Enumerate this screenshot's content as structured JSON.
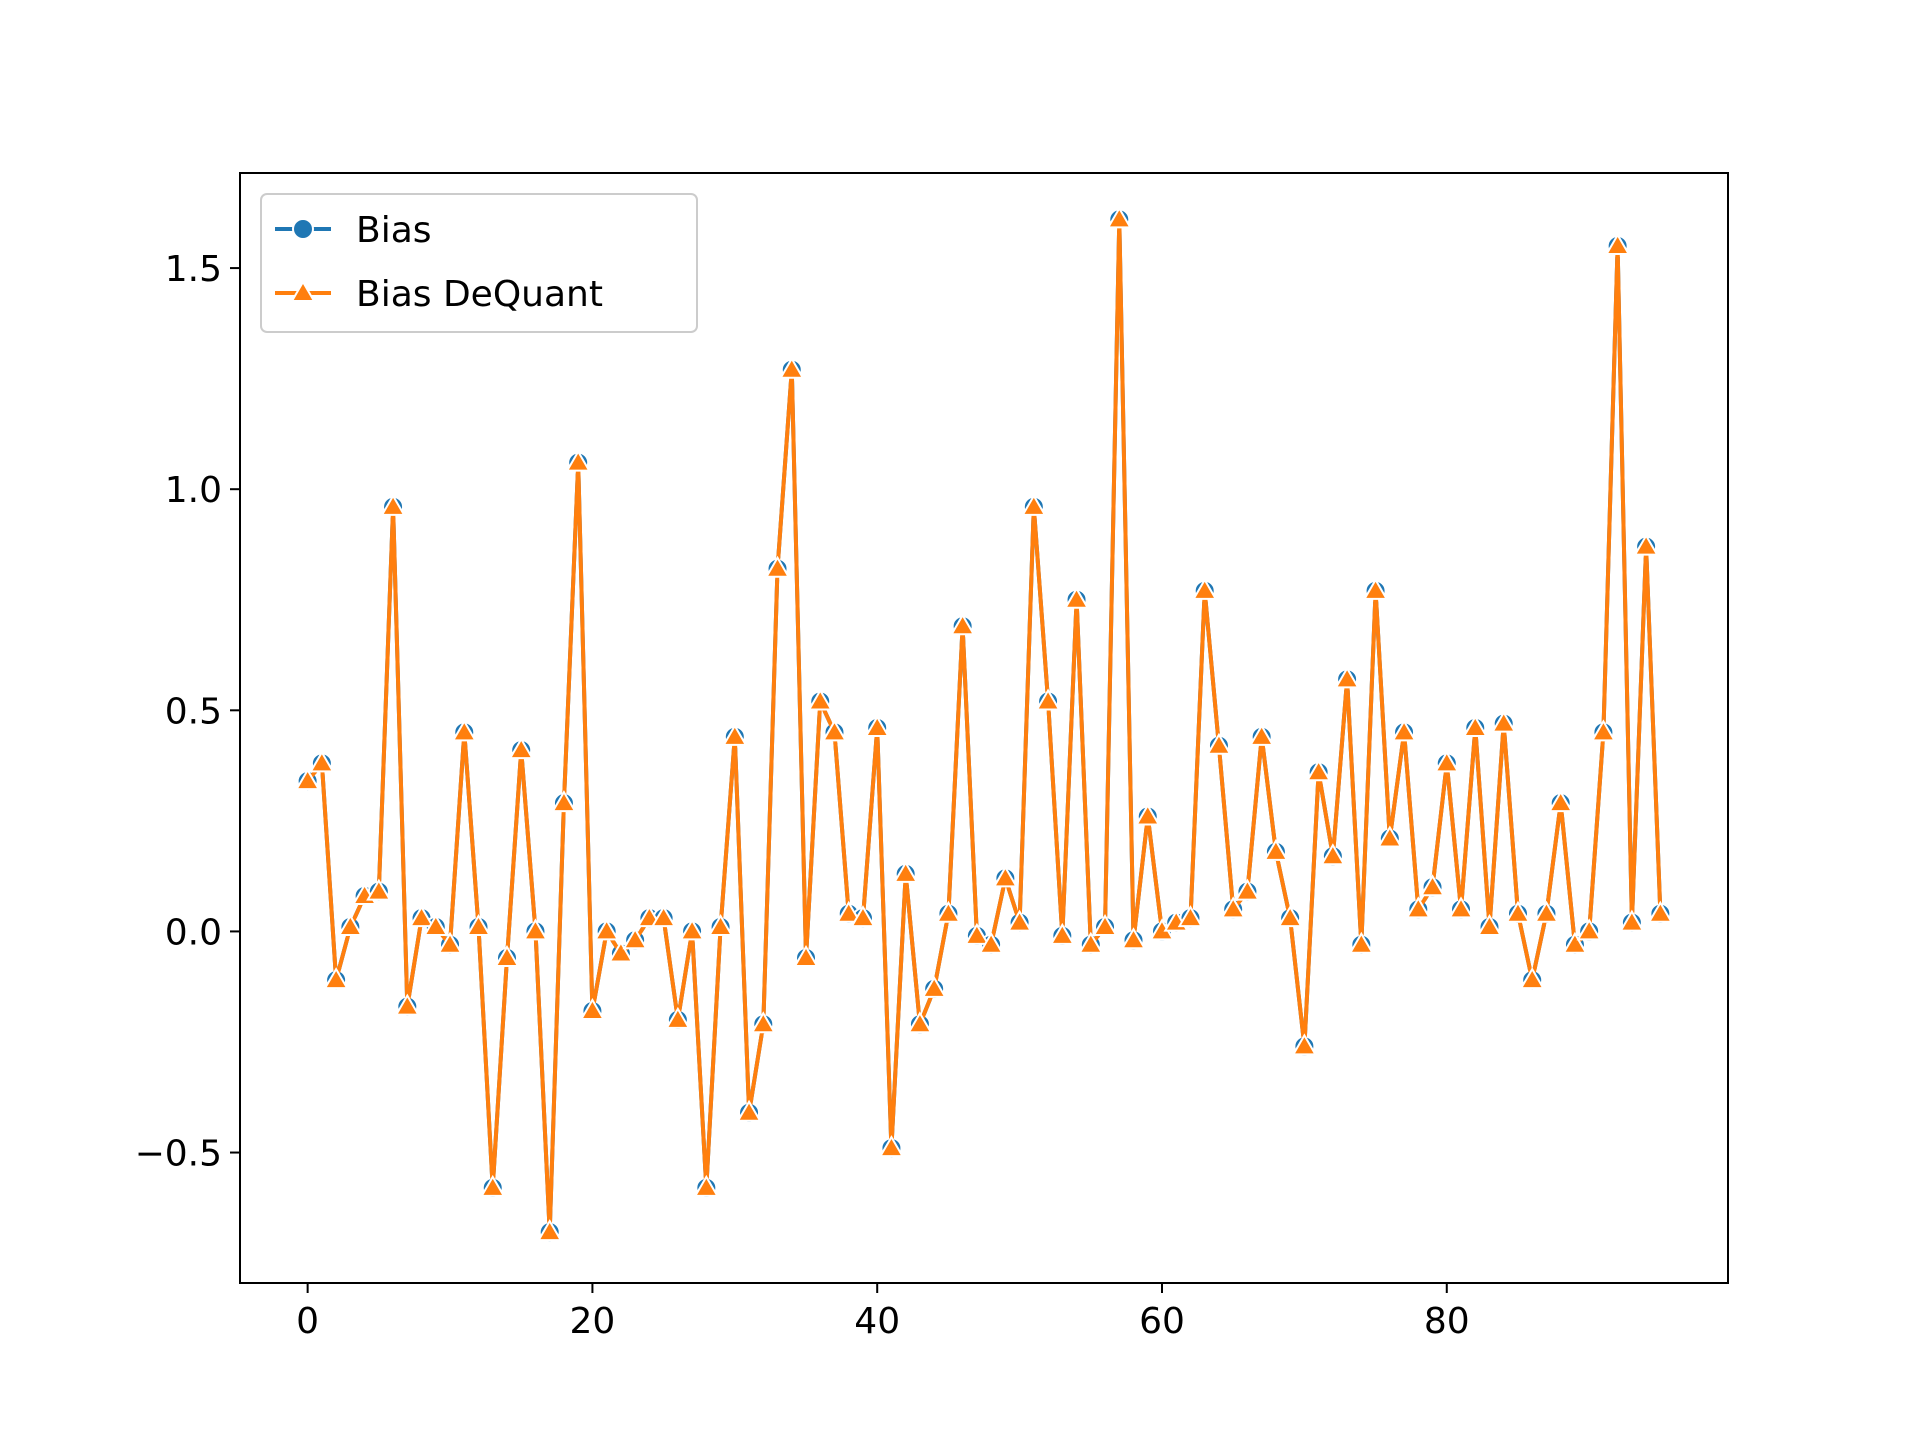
{
  "chart_data": {
    "type": "line",
    "title": "",
    "xlabel": "",
    "ylabel": "",
    "xlim": [
      -4.75,
      99.75
    ],
    "ylim": [
      -0.795,
      1.715
    ],
    "x_ticks": [
      0,
      20,
      40,
      60,
      80
    ],
    "y_ticks": [
      -0.5,
      0.0,
      0.5,
      1.0,
      1.5
    ],
    "x_tick_labels": [
      "0",
      "20",
      "40",
      "60",
      "80"
    ],
    "y_tick_labels": [
      "−0.5",
      "0.0",
      "0.5",
      "1.0",
      "1.5"
    ],
    "grid": false,
    "legend_position": "upper left",
    "x": [
      0,
      1,
      2,
      3,
      4,
      5,
      6,
      7,
      8,
      9,
      10,
      11,
      12,
      13,
      14,
      15,
      16,
      17,
      18,
      19,
      20,
      21,
      22,
      23,
      24,
      25,
      26,
      27,
      28,
      29,
      30,
      31,
      32,
      33,
      34,
      35,
      36,
      37,
      38,
      39,
      40,
      41,
      42,
      43,
      44,
      45,
      46,
      47,
      48,
      49,
      50,
      51,
      52,
      53,
      54,
      55,
      56,
      57,
      58,
      59,
      60,
      61,
      62,
      63,
      64,
      65,
      66,
      67,
      68,
      69,
      70,
      71,
      72,
      73,
      74,
      75,
      76,
      77,
      78,
      79,
      80,
      81,
      82,
      83,
      84,
      85,
      86,
      87,
      88,
      89,
      90,
      91,
      92,
      93,
      94,
      95
    ],
    "series": [
      {
        "name": "Bias",
        "color": "#1f77b4",
        "marker": "circle",
        "values": [
          0.34,
          0.38,
          -0.11,
          0.01,
          0.08,
          0.09,
          0.96,
          -0.17,
          0.03,
          0.01,
          -0.03,
          0.45,
          0.01,
          -0.58,
          -0.06,
          0.41,
          0.0,
          -0.68,
          0.29,
          1.06,
          -0.18,
          0.0,
          -0.05,
          -0.02,
          0.03,
          0.03,
          -0.2,
          0.0,
          -0.58,
          0.01,
          0.44,
          -0.41,
          -0.21,
          0.82,
          1.27,
          -0.06,
          0.52,
          0.45,
          0.04,
          0.03,
          0.46,
          -0.49,
          0.13,
          -0.21,
          -0.13,
          0.04,
          0.69,
          -0.01,
          -0.03,
          0.12,
          0.02,
          0.96,
          0.52,
          -0.01,
          0.75,
          -0.03,
          0.01,
          1.61,
          -0.02,
          0.26,
          0.0,
          0.02,
          0.03,
          0.77,
          0.42,
          0.05,
          0.09,
          0.44,
          0.18,
          0.03,
          -0.26,
          0.36,
          0.17,
          0.57,
          -0.03,
          0.77,
          0.21,
          0.45,
          0.05,
          0.1,
          0.38,
          0.05,
          0.46,
          0.01,
          0.47,
          0.04,
          -0.11,
          0.04,
          0.29,
          -0.03,
          0.0,
          0.45,
          1.55,
          0.02,
          0.87,
          0.04
        ]
      },
      {
        "name": "Bias DeQuant",
        "color": "#ff7f0e",
        "marker": "triangle",
        "values": [
          0.34,
          0.38,
          -0.11,
          0.01,
          0.08,
          0.09,
          0.96,
          -0.17,
          0.03,
          0.01,
          -0.03,
          0.45,
          0.01,
          -0.58,
          -0.06,
          0.41,
          0.0,
          -0.68,
          0.29,
          1.06,
          -0.18,
          0.0,
          -0.05,
          -0.02,
          0.03,
          0.03,
          -0.2,
          0.0,
          -0.58,
          0.01,
          0.44,
          -0.41,
          -0.21,
          0.82,
          1.27,
          -0.06,
          0.52,
          0.45,
          0.04,
          0.03,
          0.46,
          -0.49,
          0.13,
          -0.21,
          -0.13,
          0.04,
          0.69,
          -0.01,
          -0.03,
          0.12,
          0.02,
          0.96,
          0.52,
          -0.01,
          0.75,
          -0.03,
          0.01,
          1.61,
          -0.02,
          0.26,
          0.0,
          0.02,
          0.03,
          0.77,
          0.42,
          0.05,
          0.09,
          0.44,
          0.18,
          0.03,
          -0.26,
          0.36,
          0.17,
          0.57,
          -0.03,
          0.77,
          0.21,
          0.45,
          0.05,
          0.1,
          0.38,
          0.05,
          0.46,
          0.01,
          0.47,
          0.04,
          -0.11,
          0.04,
          0.29,
          -0.03,
          0.0,
          0.45,
          1.55,
          0.02,
          0.87,
          0.04
        ]
      }
    ]
  }
}
